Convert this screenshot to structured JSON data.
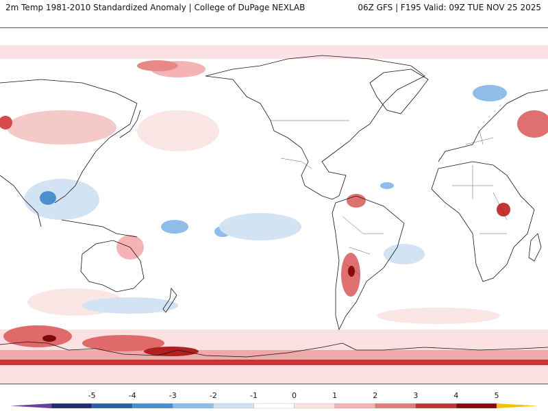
{
  "header": {
    "title": "2m Temp 1981-2010 Standardized Anomaly | College of DuPage NEXLAB",
    "run_info": "06Z GFS | F195 Valid: 09Z TUE NOV 25 2025"
  },
  "colorbar": {
    "ticks": [
      "-5",
      "-4",
      "-3",
      "-2",
      "-1",
      "0",
      "1",
      "2",
      "3",
      "4",
      "5"
    ],
    "colors": [
      "#6b3fa0",
      "#1f2f6e",
      "#2a5fa8",
      "#4a90d0",
      "#8dbde8",
      "#cfe0f2",
      "#ffffff",
      "#fde2e2",
      "#f4b4b4",
      "#e87a7a",
      "#c73030",
      "#8a0a0a",
      "#f2c20a"
    ]
  },
  "map": {
    "background": "#ffffff",
    "coastline_color": "#111111",
    "warm_color": "#f6c9c9",
    "cool_color": "#d2e3f4"
  }
}
